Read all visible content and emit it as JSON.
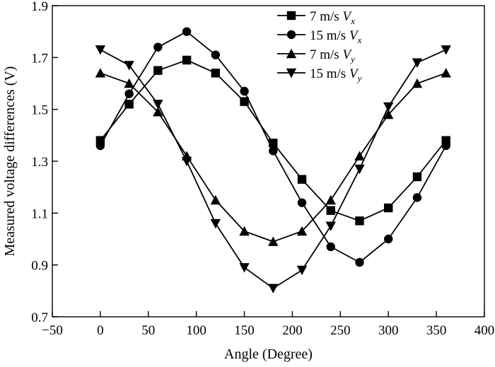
{
  "chart_data": {
    "type": "line",
    "title": "",
    "xlabel": "Angle (Degree)",
    "ylabel": "Measured voltage differences (V)",
    "xlim": [
      -50,
      400
    ],
    "ylim": [
      0.7,
      1.9
    ],
    "xticks": [
      -50,
      0,
      50,
      100,
      150,
      200,
      250,
      300,
      350,
      400
    ],
    "yticks": [
      0.7,
      0.9,
      1.1,
      1.3,
      1.5,
      1.7,
      1.9
    ],
    "xtick_labels": [
      "−50",
      "0",
      "50",
      "100",
      "150",
      "200",
      "250",
      "300",
      "350",
      "400"
    ],
    "ytick_labels": [
      "0.7",
      "0.9",
      "1.1",
      "1.3",
      "1.5",
      "1.7",
      "1.9"
    ],
    "grid": false,
    "legend_position": "top-right",
    "x": [
      0,
      30,
      60,
      90,
      120,
      150,
      180,
      210,
      240,
      270,
      300,
      330,
      360
    ],
    "series": [
      {
        "name": "7 m/s V_x",
        "label_prefix": "7 m/s ",
        "label_var": "V",
        "label_sub": "x",
        "marker": "square",
        "values": [
          1.38,
          1.52,
          1.65,
          1.69,
          1.64,
          1.53,
          1.37,
          1.23,
          1.11,
          1.07,
          1.12,
          1.24,
          1.38
        ]
      },
      {
        "name": "15 m/s V_x",
        "label_prefix": "15 m/s ",
        "label_var": "V",
        "label_sub": "x",
        "marker": "circle",
        "values": [
          1.36,
          1.56,
          1.74,
          1.8,
          1.71,
          1.57,
          1.34,
          1.14,
          0.97,
          0.91,
          1.0,
          1.16,
          1.36
        ]
      },
      {
        "name": "7 m/s V_y",
        "label_prefix": "7 m/s ",
        "label_var": "V",
        "label_sub": "y",
        "marker": "triangle-up",
        "values": [
          1.64,
          1.6,
          1.49,
          1.32,
          1.15,
          1.03,
          0.99,
          1.03,
          1.15,
          1.32,
          1.48,
          1.6,
          1.64
        ]
      },
      {
        "name": "15 m/s V_y",
        "label_prefix": "15 m/s ",
        "label_var": "V",
        "label_sub": "y",
        "marker": "triangle-down",
        "values": [
          1.73,
          1.67,
          1.52,
          1.3,
          1.06,
          0.89,
          0.81,
          0.88,
          1.05,
          1.27,
          1.51,
          1.68,
          1.73
        ]
      }
    ]
  }
}
